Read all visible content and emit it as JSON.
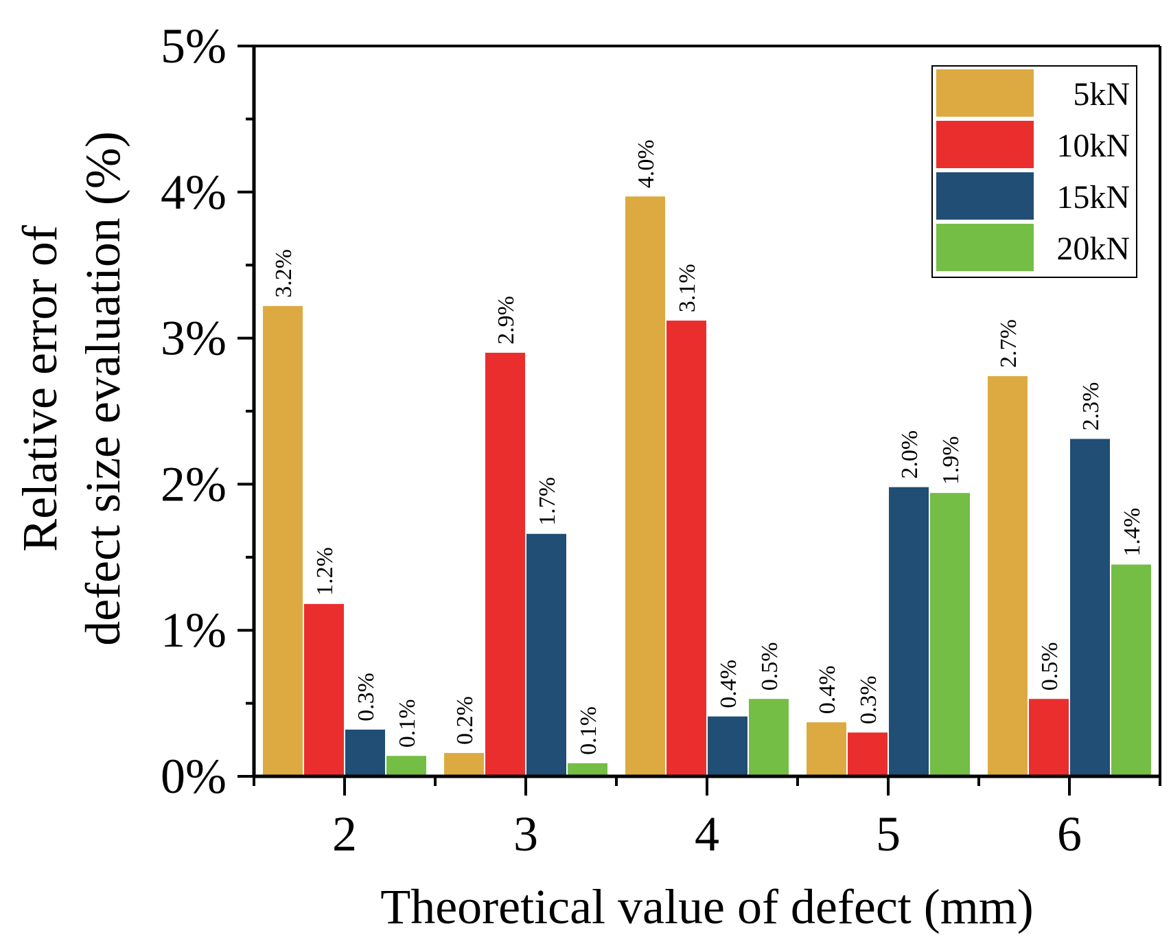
{
  "chart_data": {
    "type": "bar",
    "title": "",
    "xlabel": "Theoretical value of defect (mm)",
    "ylabel_lines": [
      "Relative error of",
      "defect size evaluation (%)"
    ],
    "categories": [
      "2",
      "3",
      "4",
      "5",
      "6"
    ],
    "ylim": [
      0,
      5
    ],
    "yticks": [
      0,
      1,
      2,
      3,
      4,
      5
    ],
    "ytick_labels": [
      "0%",
      "1%",
      "2%",
      "3%",
      "4%",
      "5%"
    ],
    "legend_position": "top-right",
    "grid": false,
    "series": [
      {
        "name": "5kN",
        "color": "#DDAA42",
        "values": [
          3.22,
          0.16,
          3.97,
          0.37,
          2.74
        ],
        "labels": [
          "3.2%",
          "0.2%",
          "4.0%",
          "0.4%",
          "2.7%"
        ]
      },
      {
        "name": "10kN",
        "color": "#EA2E2D",
        "values": [
          1.18,
          2.9,
          3.12,
          0.3,
          0.53
        ],
        "labels": [
          "1.2%",
          "2.9%",
          "3.1%",
          "0.3%",
          "0.5%"
        ]
      },
      {
        "name": "15kN",
        "color": "#204E74",
        "values": [
          0.32,
          1.66,
          0.41,
          1.98,
          2.31
        ],
        "labels": [
          "0.3%",
          "1.7%",
          "0.4%",
          "2.0%",
          "2.3%"
        ]
      },
      {
        "name": "20kN",
        "color": "#74BE45",
        "values": [
          0.14,
          0.09,
          0.53,
          1.94,
          1.45
        ],
        "labels": [
          "0.1%",
          "0.1%",
          "0.5%",
          "1.9%",
          "1.4%"
        ]
      }
    ]
  }
}
